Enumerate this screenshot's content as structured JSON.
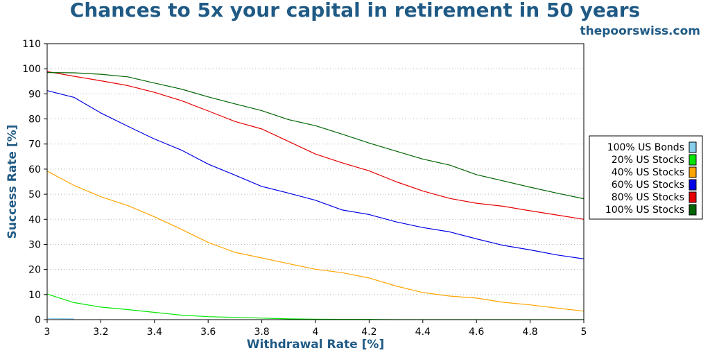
{
  "header": {
    "title": "Chances to 5x your capital in retirement in 50 years",
    "brand": "thepoorswiss.com"
  },
  "chart_data": {
    "type": "line",
    "title": "Chances to 5x your capital in retirement in 50 years",
    "xlabel": "Withdrawal Rate [%]",
    "ylabel": "Success Rate [%]",
    "xlim": [
      3,
      5
    ],
    "ylim": [
      0,
      110
    ],
    "xticks": [
      3,
      3.2,
      3.4,
      3.6,
      3.8,
      4,
      4.2,
      4.4,
      4.6,
      4.8,
      5
    ],
    "xtick_labels": [
      "3",
      "3.2",
      "3.4",
      "3.6",
      "3.8",
      "4",
      "4.2",
      "4.4",
      "4.6",
      "4.8",
      "5"
    ],
    "yticks": [
      0,
      10,
      20,
      30,
      40,
      50,
      60,
      70,
      80,
      90,
      100,
      110
    ],
    "ytick_labels": [
      "0",
      "10",
      "20",
      "30",
      "40",
      "50",
      "60",
      "70",
      "80",
      "90",
      "100",
      "110"
    ],
    "grid": "horizontal dotted",
    "legend_position": "right",
    "x": [
      3,
      3.1,
      3.2,
      3.3,
      3.4,
      3.5,
      3.6,
      3.7,
      3.8,
      3.9,
      4,
      4.1,
      4.2,
      4.3,
      4.4,
      4.5,
      4.6,
      4.7,
      4.8,
      4.9,
      5
    ],
    "series": [
      {
        "name": "100% US Bonds",
        "color": "#87ceeb",
        "values": [
          0.5,
          0.3,
          null,
          null,
          null,
          null,
          null,
          null,
          null,
          null,
          null,
          null,
          null,
          null,
          null,
          null,
          null,
          null,
          null,
          null,
          null
        ]
      },
      {
        "name": "20% US Stocks",
        "color": "#00e600",
        "values": [
          10.2,
          6.8,
          5.0,
          4.0,
          2.9,
          1.8,
          1.2,
          0.9,
          0.6,
          0.3,
          0.2,
          0.1,
          0.1,
          0.0,
          0.0,
          0.0,
          0.0,
          0.0,
          0.0,
          0.0,
          0.0
        ]
      },
      {
        "name": "40% US Stocks",
        "color": "#ffa500",
        "values": [
          59.2,
          53.5,
          49.0,
          45.5,
          41.0,
          36.0,
          30.8,
          26.8,
          24.6,
          22.3,
          20.1,
          18.7,
          16.6,
          13.4,
          10.8,
          9.4,
          8.6,
          6.9,
          5.9,
          4.6,
          3.4
        ]
      },
      {
        "name": "60% US Stocks",
        "color": "#0000e6",
        "values": [
          91.3,
          88.6,
          82.4,
          77.1,
          72.0,
          67.6,
          62.0,
          57.6,
          53.1,
          50.4,
          47.6,
          43.7,
          41.9,
          39.0,
          36.7,
          35.0,
          32.2,
          29.6,
          27.8,
          25.8,
          24.2
        ]
      },
      {
        "name": "80% US Stocks",
        "color": "#e60000",
        "values": [
          98.9,
          97.0,
          95.2,
          93.3,
          90.6,
          87.3,
          83.2,
          79.0,
          76.0,
          71.0,
          66.0,
          62.5,
          59.3,
          55.0,
          51.3,
          48.3,
          46.4,
          45.2,
          43.4,
          41.7,
          40.0
        ]
      },
      {
        "name": "100% US Stocks",
        "color": "#006400",
        "values": [
          98.5,
          98.4,
          97.8,
          96.8,
          94.3,
          91.9,
          88.8,
          86.0,
          83.3,
          79.7,
          77.3,
          73.9,
          70.4,
          67.2,
          64.0,
          61.6,
          57.8,
          55.3,
          52.8,
          50.4,
          48.2
        ]
      }
    ]
  }
}
